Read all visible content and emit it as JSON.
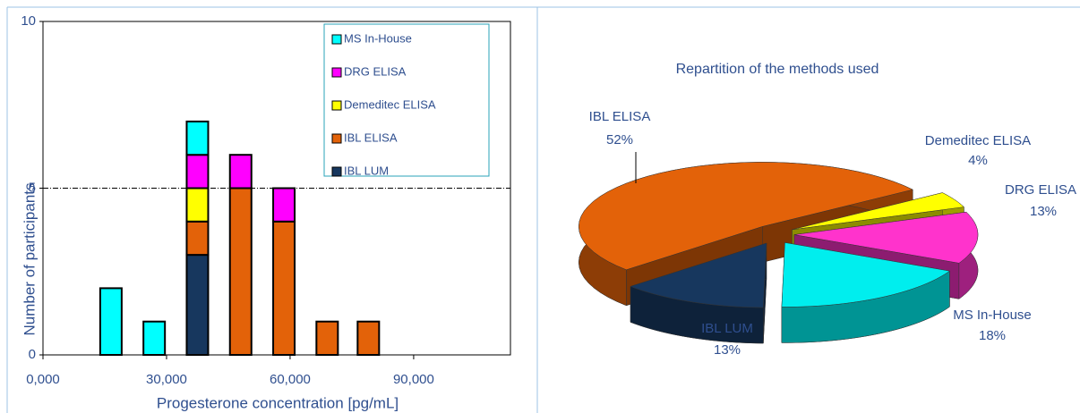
{
  "chart_data": [
    {
      "type": "bar",
      "xlabel": "Progesterone concentration [pg/mL]",
      "ylabel": "Number of participants",
      "x": [
        16500,
        27000,
        37500,
        48000,
        58500,
        69000,
        79000
      ],
      "series": [
        {
          "name": "IBL LUM",
          "color": "#17375e",
          "values": [
            0,
            0,
            3,
            0,
            0,
            0,
            0
          ]
        },
        {
          "name": "IBL ELISA",
          "color": "#e36209",
          "values": [
            0,
            0,
            1,
            5,
            4,
            1,
            1
          ]
        },
        {
          "name": "Demeditec ELISA",
          "color": "#ffff00",
          "values": [
            0,
            0,
            1,
            0,
            0,
            0,
            0
          ]
        },
        {
          "name": "DRG ELISA",
          "color": "#ff00ff",
          "values": [
            0,
            0,
            1,
            1,
            1,
            0,
            0
          ]
        },
        {
          "name": "MS In-House",
          "color": "#00ffff",
          "values": [
            2,
            1,
            1,
            0,
            0,
            0,
            0
          ]
        }
      ],
      "stacked": true,
      "xlim": [
        0,
        113500
      ],
      "xticks": [
        {
          "value": 0,
          "label": "0,000"
        },
        {
          "value": 30000,
          "label": "30,000"
        },
        {
          "value": 60000,
          "label": "60,000"
        },
        {
          "value": 90000,
          "label": "90,000"
        }
      ],
      "ylim": [
        0,
        10
      ],
      "yticks": [
        0,
        5,
        10
      ],
      "grid": true,
      "legend": "upper right"
    },
    {
      "type": "pie",
      "title": "Repartition of the methods used",
      "categories": [
        "IBL ELISA",
        "Demeditec ELISA",
        "DRG ELISA",
        "MS In-House",
        "IBL LUM"
      ],
      "values": [
        52,
        4,
        13,
        18,
        13
      ],
      "value_labels": [
        "52%",
        "4%",
        "13%",
        "18%",
        "13%"
      ],
      "colors": [
        "#e36209",
        "#ffff00",
        "#ff33cc",
        "#00eeee",
        "#17375e"
      ],
      "three_d": true
    }
  ]
}
